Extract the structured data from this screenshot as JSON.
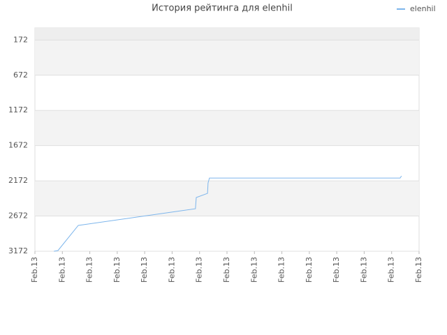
{
  "chart_data": {
    "type": "line",
    "title": "История рейтинга для elenhil",
    "x": [
      0.69,
      0.84,
      1.58,
      5.85,
      5.88,
      6.29,
      6.31,
      6.36,
      13.31,
      13.36
    ],
    "series": [
      {
        "name": "elenhil",
        "color": "#7cb5ec",
        "values": [
          3172,
          3162,
          2805,
          2568,
          2409,
          2350,
          2202,
          2132,
          2132,
          2103
        ]
      }
    ],
    "xlim": [
      0,
      14
    ],
    "xticks": [
      {
        "value": 0,
        "label": "Feb.13"
      },
      {
        "value": 1,
        "label": "Feb.13"
      },
      {
        "value": 2,
        "label": "Feb.13"
      },
      {
        "value": 3,
        "label": "Feb.13"
      },
      {
        "value": 4,
        "label": "Feb.13"
      },
      {
        "value": 5,
        "label": "Feb.13"
      },
      {
        "value": 6,
        "label": "Feb.13"
      },
      {
        "value": 7,
        "label": "Feb.13"
      },
      {
        "value": 8,
        "label": "Feb.13"
      },
      {
        "value": 9,
        "label": "Feb.13"
      },
      {
        "value": 10,
        "label": "Feb.13"
      },
      {
        "value": 11,
        "label": "Feb.13"
      },
      {
        "value": 12,
        "label": "Feb.13"
      },
      {
        "value": 13,
        "label": "Feb.13"
      },
      {
        "value": 14,
        "label": "Feb.13"
      }
    ],
    "ylim": [
      3172,
      0
    ],
    "yticks": [
      172,
      672,
      1172,
      1672,
      2172,
      2672,
      3172
    ],
    "grid": true,
    "legend": "top-right"
  }
}
